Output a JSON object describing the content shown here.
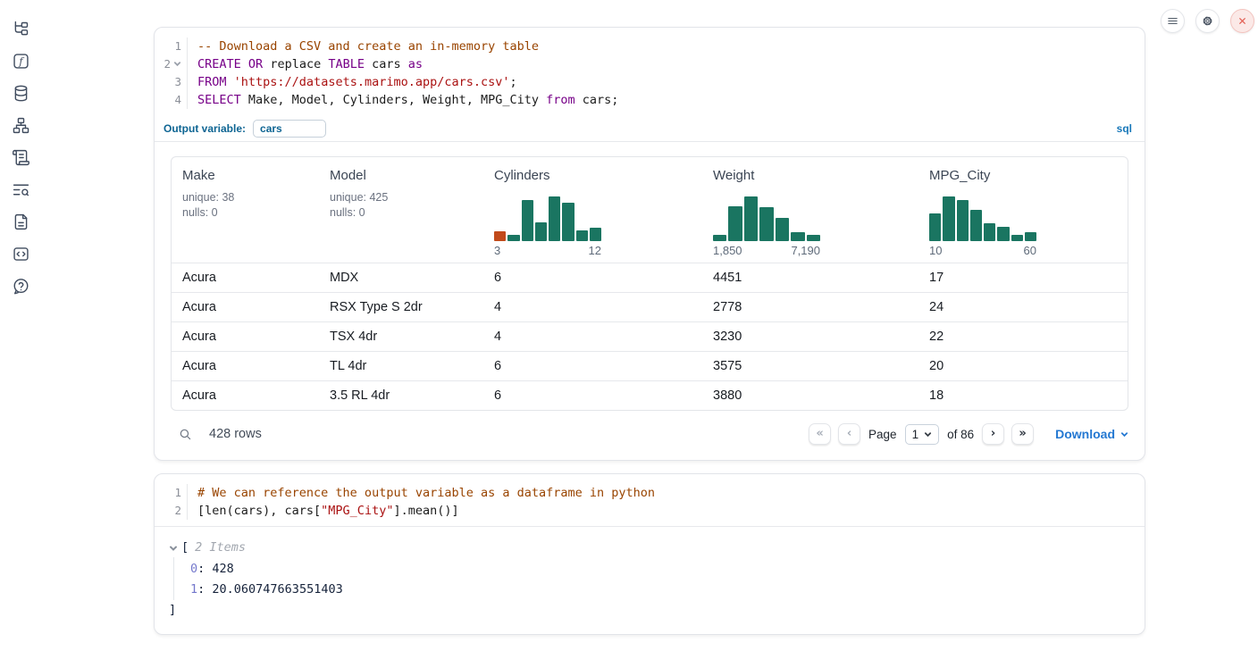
{
  "sidebar": {
    "icons": [
      {
        "name": "file-tree-icon"
      },
      {
        "name": "function-icon"
      },
      {
        "name": "database-icon"
      },
      {
        "name": "dependency-graph-icon"
      },
      {
        "name": "scratchpad-icon"
      },
      {
        "name": "logs-search-icon"
      },
      {
        "name": "documentation-icon"
      },
      {
        "name": "snippets-icon"
      },
      {
        "name": "help-icon"
      }
    ]
  },
  "topbar": {
    "buttons": [
      {
        "name": "menu-icon"
      },
      {
        "name": "settings-gear-icon"
      },
      {
        "name": "shutdown-close-icon",
        "accent": "#e25a4e",
        "background": "#fbe9e7"
      }
    ]
  },
  "glyphs": {
    "first_page": "«",
    "prev_page": "‹",
    "next_page": "›",
    "last_page": "»"
  },
  "sql_cell": {
    "lines": [
      {
        "num": "1",
        "tokens": [
          {
            "v": "-- Download a CSV and create an in-memory table"
          }
        ]
      },
      {
        "num": "2",
        "tokens": [
          {
            "v": "CREATE"
          },
          {
            "v": " "
          },
          {
            "v": "OR"
          },
          {
            "v": " replace "
          },
          {
            "v": "TABLE"
          },
          {
            "v": " cars "
          },
          {
            "v": "as"
          }
        ]
      },
      {
        "num": "3",
        "tokens": [
          {
            "v": "FROM"
          },
          {
            "v": " "
          },
          {
            "v": "'https://datasets.marimo.app/cars.csv'"
          },
          {
            "v": ";"
          }
        ]
      },
      {
        "num": "4",
        "tokens": [
          {
            "v": "SELECT"
          },
          {
            "v": " Make, Model, Cylinders, Weight, MPG_City "
          },
          {
            "v": "from"
          },
          {
            "v": " cars;"
          }
        ]
      }
    ],
    "output_variable_label": "Output variable:",
    "output_variable_value": "cars",
    "language_label": "sql"
  },
  "table": {
    "columns": [
      {
        "name": "Make",
        "stat1": "unique: 38",
        "stat2": "nulls: 0"
      },
      {
        "name": "Model",
        "stat1": "unique: 425",
        "stat2": "nulls: 0"
      },
      {
        "name": "Cylinders",
        "min_label": "3",
        "max_label": "12"
      },
      {
        "name": "Weight",
        "min_label": "1,850",
        "max_label": "7,190"
      },
      {
        "name": "MPG_City",
        "min_label": "10",
        "max_label": "60"
      }
    ],
    "rows": [
      [
        "Acura",
        "MDX",
        "6",
        "4451",
        "17"
      ],
      [
        "Acura",
        "RSX Type S 2dr",
        "4",
        "2778",
        "24"
      ],
      [
        "Acura",
        "TSX 4dr",
        "4",
        "3230",
        "22"
      ],
      [
        "Acura",
        "TL 4dr",
        "6",
        "3575",
        "20"
      ],
      [
        "Acura",
        "3.5 RL 4dr",
        "6",
        "3880",
        "18"
      ]
    ],
    "footer": {
      "rows_count": "428 rows",
      "page_label": "Page",
      "page_value": "1",
      "total_label": "of 86",
      "download_label": "Download"
    }
  },
  "chart_data": [
    {
      "type": "histogram",
      "title": "Cylinders",
      "x_range": [
        3,
        12
      ],
      "bars_rel": [
        0.23,
        0.15,
        0.93,
        0.42,
        1.0,
        0.86,
        0.24,
        0.3
      ],
      "bar_color": "#1a7561",
      "first_bar_color": "#c14a1b"
    },
    {
      "type": "histogram",
      "title": "Weight",
      "x_range": [
        1850,
        7190
      ],
      "bars_rel": [
        0.15,
        0.78,
        1.0,
        0.77,
        0.53,
        0.21,
        0.15
      ],
      "bar_color": "#1a7561"
    },
    {
      "type": "histogram",
      "title": "MPG_City",
      "x_range": [
        10,
        60
      ],
      "bars_rel": [
        0.63,
        1.0,
        0.93,
        0.71,
        0.41,
        0.32,
        0.15,
        0.21
      ],
      "bar_color": "#1a7561"
    }
  ],
  "python_cell": {
    "lines": [
      {
        "num": "1",
        "tokens": [
          {
            "v": "# We can reference the output variable as a dataframe in python"
          }
        ]
      },
      {
        "num": "2",
        "tokens": [
          {
            "v": "[len(cars), cars["
          },
          {
            "v": "\"MPG_City\""
          },
          {
            "v": "].mean()]"
          }
        ]
      }
    ],
    "output": {
      "open_bracket": "[",
      "items_label": "2 Items",
      "entries": [
        {
          "key": "0",
          "sep": ": ",
          "value": "428"
        },
        {
          "key": "1",
          "sep": ": ",
          "value": "20.060747663551403"
        }
      ],
      "close_bracket": "]"
    }
  }
}
